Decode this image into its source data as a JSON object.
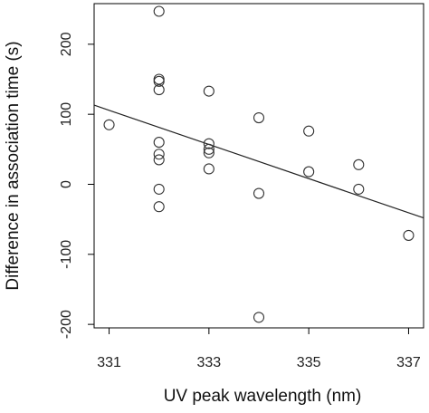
{
  "chart_data": {
    "type": "scatter",
    "title": "",
    "xlabel": "UV peak wavelength (nm)",
    "ylabel": "Difference in association time (s)",
    "xlim": [
      330.7,
      337.3
    ],
    "ylim": [
      -205,
      258
    ],
    "x_ticks": [
      331,
      333,
      335,
      337
    ],
    "y_ticks": [
      -200,
      -100,
      0,
      100,
      200
    ],
    "grid": false,
    "box": true,
    "points": [
      {
        "x": 331,
        "y": 85
      },
      {
        "x": 332,
        "y": 247
      },
      {
        "x": 332,
        "y": 150
      },
      {
        "x": 332,
        "y": 147
      },
      {
        "x": 332,
        "y": 135
      },
      {
        "x": 332,
        "y": 60
      },
      {
        "x": 332,
        "y": 43
      },
      {
        "x": 332,
        "y": 35
      },
      {
        "x": 332,
        "y": -7
      },
      {
        "x": 332,
        "y": -32
      },
      {
        "x": 333,
        "y": 133
      },
      {
        "x": 333,
        "y": 58
      },
      {
        "x": 333,
        "y": 50
      },
      {
        "x": 333,
        "y": 45
      },
      {
        "x": 333,
        "y": 22
      },
      {
        "x": 334,
        "y": 95
      },
      {
        "x": 334,
        "y": -13
      },
      {
        "x": 334,
        "y": -190
      },
      {
        "x": 335,
        "y": 76
      },
      {
        "x": 335,
        "y": 18
      },
      {
        "x": 336,
        "y": 28
      },
      {
        "x": 336,
        "y": -7
      },
      {
        "x": 337,
        "y": -73
      }
    ],
    "regression_line": {
      "x": [
        330.7,
        337.3
      ],
      "y": [
        113,
        -48
      ]
    }
  }
}
